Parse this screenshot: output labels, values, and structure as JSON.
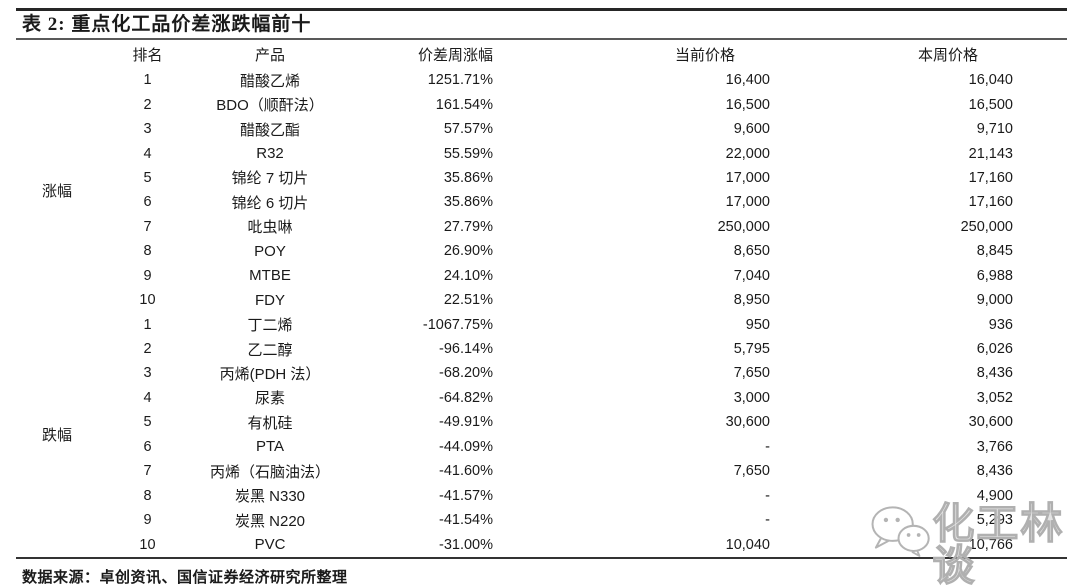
{
  "table": {
    "title": "表 2:  重点化工品价差涨跌幅前十",
    "columns": {
      "rank": "排名",
      "product": "产品",
      "spread_change": "价差周涨幅",
      "current_price": "当前价格",
      "week_price": "本周价格"
    },
    "groups": [
      {
        "label": "涨幅",
        "rows": [
          {
            "rank": "1",
            "product": "醋酸乙烯",
            "spread_change": "1251.71%",
            "current_price": "16,400",
            "week_price": "16,040"
          },
          {
            "rank": "2",
            "product": "BDO（顺酐法）",
            "spread_change": "161.54%",
            "current_price": "16,500",
            "week_price": "16,500"
          },
          {
            "rank": "3",
            "product": "醋酸乙酯",
            "spread_change": "57.57%",
            "current_price": "9,600",
            "week_price": "9,710"
          },
          {
            "rank": "4",
            "product": "R32",
            "spread_change": "55.59%",
            "current_price": "22,000",
            "week_price": "21,143"
          },
          {
            "rank": "5",
            "product": "锦纶 7 切片",
            "spread_change": "35.86%",
            "current_price": "17,000",
            "week_price": "17,160"
          },
          {
            "rank": "6",
            "product": "锦纶 6 切片",
            "spread_change": "35.86%",
            "current_price": "17,000",
            "week_price": "17,160"
          },
          {
            "rank": "7",
            "product": "吡虫啉",
            "spread_change": "27.79%",
            "current_price": "250,000",
            "week_price": "250,000"
          },
          {
            "rank": "8",
            "product": "POY",
            "spread_change": "26.90%",
            "current_price": "8,650",
            "week_price": "8,845"
          },
          {
            "rank": "9",
            "product": "MTBE",
            "spread_change": "24.10%",
            "current_price": "7,040",
            "week_price": "6,988"
          },
          {
            "rank": "10",
            "product": "FDY",
            "spread_change": "22.51%",
            "current_price": "8,950",
            "week_price": "9,000"
          }
        ]
      },
      {
        "label": "跌幅",
        "rows": [
          {
            "rank": "1",
            "product": "丁二烯",
            "spread_change": "-1067.75%",
            "current_price": "950",
            "week_price": "936"
          },
          {
            "rank": "2",
            "product": "乙二醇",
            "spread_change": "-96.14%",
            "current_price": "5,795",
            "week_price": "6,026"
          },
          {
            "rank": "3",
            "product": "丙烯(PDH 法）",
            "spread_change": "-68.20%",
            "current_price": "7,650",
            "week_price": "8,436"
          },
          {
            "rank": "4",
            "product": "尿素",
            "spread_change": "-64.82%",
            "current_price": "3,000",
            "week_price": "3,052"
          },
          {
            "rank": "5",
            "product": "有机硅",
            "spread_change": "-49.91%",
            "current_price": "30,600",
            "week_price": "30,600"
          },
          {
            "rank": "6",
            "product": "PTA",
            "spread_change": "-44.09%",
            "current_price": "-",
            "week_price": "3,766"
          },
          {
            "rank": "7",
            "product": "丙烯（石脑油法）",
            "spread_change": "-41.60%",
            "current_price": "7,650",
            "week_price": "8,436"
          },
          {
            "rank": "8",
            "product": "炭黑 N330",
            "spread_change": "-41.57%",
            "current_price": "-",
            "week_price": "4,900"
          },
          {
            "rank": "9",
            "product": "炭黑 N220",
            "spread_change": "-41.54%",
            "current_price": "-",
            "week_price": "5,293"
          },
          {
            "rank": "10",
            "product": "PVC",
            "spread_change": "-31.00%",
            "current_price": "10,040",
            "week_price": "10,766"
          }
        ]
      }
    ]
  },
  "footer": {
    "source": "数据来源：卓创资讯、国信证券经济研究所整理"
  },
  "watermark": {
    "text": "化工林谈",
    "icon": "wechat-icon"
  },
  "colors": {
    "text": "#1a1a1a",
    "rule_dark": "#262626",
    "rule_gray": "#595959",
    "watermark_gray": "#b0b0b0"
  }
}
